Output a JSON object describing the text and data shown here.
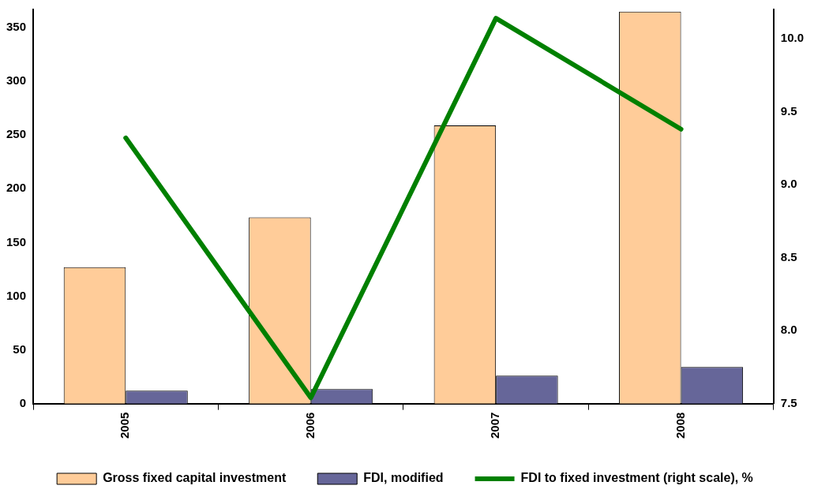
{
  "chart_data": {
    "type": "bar",
    "categories": [
      "2005",
      "2006",
      "2007",
      "2008"
    ],
    "series": [
      {
        "name": "Gross fixed capital investment",
        "color": "#ffcc99",
        "values": [
          127,
          173.5,
          259,
          365
        ]
      },
      {
        "name": "FDI, modified",
        "color": "#666699",
        "values": [
          12,
          13.5,
          26,
          34
        ]
      },
      {
        "name": "FDI to fixed investment (right scale), %",
        "color": "#008000",
        "type": "line",
        "axis": "y2",
        "values": [
          9.32,
          7.54,
          10.14,
          9.38
        ]
      }
    ],
    "ylim": [
      0,
      367
    ],
    "yticks": [
      0,
      50,
      100,
      150,
      200,
      250,
      300,
      350
    ],
    "y2lim": [
      7.5,
      10.2
    ],
    "y2ticks": [
      7.5,
      {
        "value": 8,
        "label": "8.0"
      },
      8.5,
      {
        "value": 9,
        "label": "9.0"
      },
      9.5,
      {
        "value": 10,
        "label": "10.0"
      }
    ],
    "grid": false,
    "legend": "bottom",
    "marker": "none"
  }
}
